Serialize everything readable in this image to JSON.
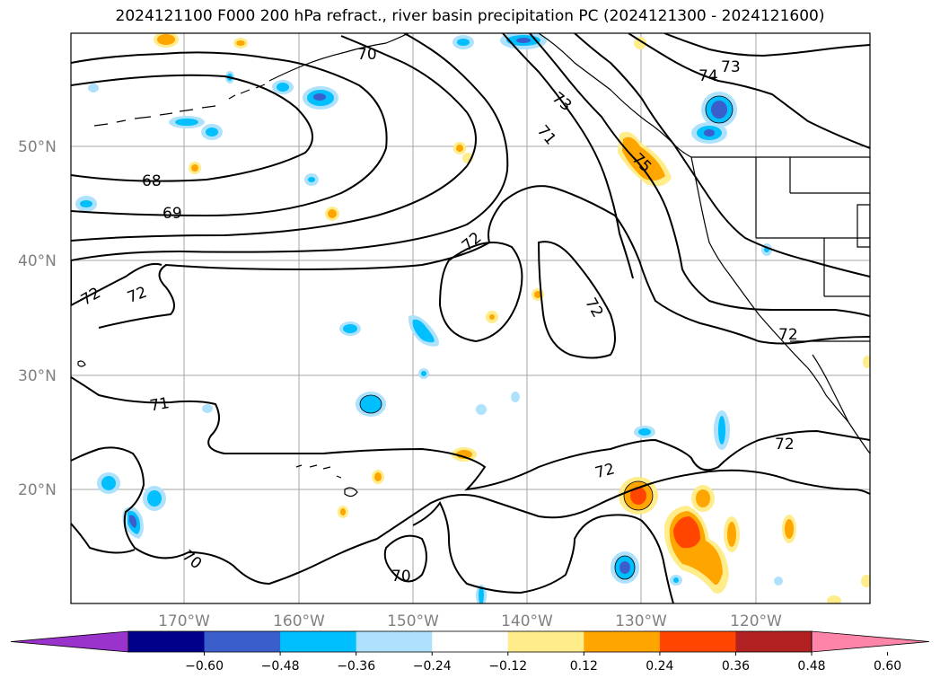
{
  "title": "2024121100 F000 200 hPa refract., river basin precipitation PC (2024121300 - 2024121600)",
  "lat_labels": [
    "50°N",
    "40°N",
    "30°N",
    "20°N"
  ],
  "lon_labels": [
    "170°W",
    "160°W",
    "150°W",
    "140°W",
    "130°W",
    "120°W"
  ],
  "contour_labels": [
    {
      "text": "73"
    },
    {
      "text": "74"
    },
    {
      "text": "73"
    },
    {
      "text": "70"
    },
    {
      "text": "71"
    },
    {
      "text": "75"
    },
    {
      "text": "68"
    },
    {
      "text": "69"
    },
    {
      "text": "72"
    },
    {
      "text": "72"
    },
    {
      "text": "72"
    },
    {
      "text": "72"
    },
    {
      "text": "72"
    },
    {
      "text": "71"
    },
    {
      "text": "72"
    },
    {
      "text": "72"
    },
    {
      "text": "70"
    },
    {
      "text": "70"
    }
  ],
  "colorbar": {
    "colors": [
      "#9933cc",
      "#00008b",
      "#3a5fcd",
      "#00bfff",
      "#aee1fb",
      "#ffffff",
      "#ffec8b",
      "#ffa500",
      "#ff4500",
      "#b22222",
      "#ff85a8"
    ],
    "ticks": [
      "−0.60",
      "−0.48",
      "−0.36",
      "−0.24",
      "−0.12",
      "0.12",
      "0.24",
      "0.36",
      "0.48",
      "0.60"
    ]
  }
}
